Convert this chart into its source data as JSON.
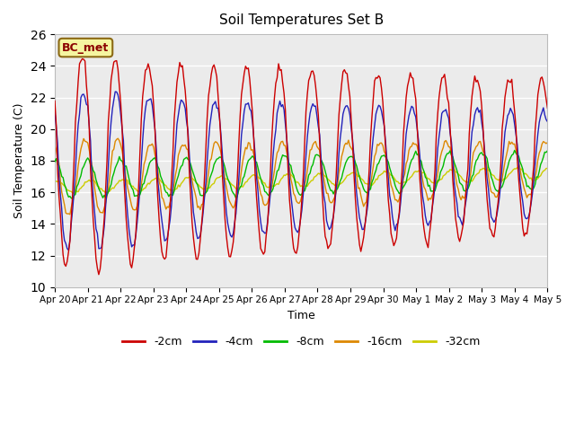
{
  "title": "Soil Temperatures Set B",
  "xlabel": "Time",
  "ylabel": "Soil Temperature (C)",
  "ylim": [
    10,
    26
  ],
  "annotation": "BC_met",
  "bg_color": "#ebebeb",
  "series": {
    "-2cm": {
      "color": "#cc0000"
    },
    "-4cm": {
      "color": "#2222bb"
    },
    "-8cm": {
      "color": "#00bb00"
    },
    "-16cm": {
      "color": "#dd8800"
    },
    "-32cm": {
      "color": "#cccc00"
    }
  },
  "xtick_labels": [
    "Apr 20",
    "Apr 21",
    "Apr 22",
    "Apr 23",
    "Apr 24",
    "Apr 25",
    "Apr 26",
    "Apr 27",
    "Apr 28",
    "Apr 29",
    "Apr 30",
    "May 1",
    "May 2",
    "May 3",
    "May 4",
    "May 5"
  ]
}
